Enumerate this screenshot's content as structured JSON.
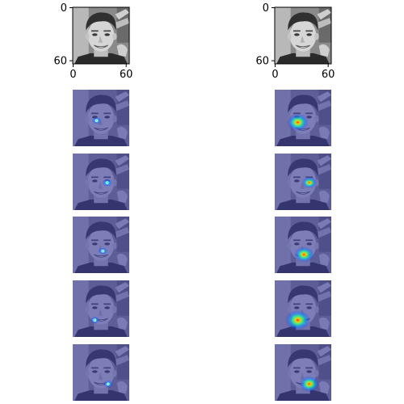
{
  "chart_data": [
    {
      "type": "image",
      "position": "row-1-left",
      "content": "grayscale face",
      "xlim": [
        0,
        64
      ],
      "ylim": [
        64,
        0
      ],
      "xticks": [
        "0",
        "60"
      ],
      "yticks": [
        "0",
        "60"
      ],
      "axes": "visible"
    },
    {
      "type": "image",
      "position": "row-1-right",
      "content": "grayscale face",
      "xlim": [
        0,
        64
      ],
      "ylim": [
        64,
        0
      ],
      "xticks": [
        "0",
        "60"
      ],
      "yticks": [
        "0",
        "60"
      ],
      "axes": "visible"
    },
    {
      "type": "heatmap",
      "position": "row-2-left",
      "colormap": "jet",
      "overlay": "face",
      "axes": "hidden",
      "hotspot": {
        "x": 27,
        "y": 35,
        "intensity": 0.35,
        "spread": 1.4
      }
    },
    {
      "type": "heatmap",
      "position": "row-2-right",
      "colormap": "jet",
      "overlay": "face",
      "axes": "hidden",
      "hotspot": {
        "x": 26,
        "y": 37,
        "intensity": 1.0,
        "spread": 5.0
      }
    },
    {
      "type": "heatmap",
      "position": "row-3-left",
      "colormap": "jet",
      "overlay": "face",
      "axes": "hidden",
      "hotspot": {
        "x": 39,
        "y": 33,
        "intensity": 0.55,
        "spread": 1.6
      }
    },
    {
      "type": "heatmap",
      "position": "row-3-right",
      "colormap": "jet",
      "overlay": "face",
      "axes": "hidden",
      "hotspot": {
        "x": 39,
        "y": 33,
        "intensity": 0.9,
        "spread": 3.0
      }
    },
    {
      "type": "heatmap",
      "position": "row-4-left",
      "colormap": "jet",
      "overlay": "face",
      "axes": "hidden",
      "hotspot": {
        "x": 34,
        "y": 39,
        "intensity": 0.4,
        "spread": 1.4
      }
    },
    {
      "type": "heatmap",
      "position": "row-4-right",
      "colormap": "jet",
      "overlay": "face",
      "axes": "hidden",
      "hotspot": {
        "x": 33,
        "y": 43,
        "intensity": 1.0,
        "spread": 4.5
      }
    },
    {
      "type": "heatmap",
      "position": "row-5-left",
      "colormap": "jet",
      "overlay": "face",
      "axes": "hidden",
      "hotspot": {
        "x": 25,
        "y": 45,
        "intensity": 0.35,
        "spread": 1.4
      }
    },
    {
      "type": "heatmap",
      "position": "row-5-right",
      "colormap": "jet",
      "overlay": "face",
      "axes": "hidden",
      "hotspot": {
        "x": 26,
        "y": 45,
        "intensity": 1.0,
        "spread": 6.0
      }
    },
    {
      "type": "heatmap",
      "position": "row-6-left",
      "colormap": "jet",
      "overlay": "face",
      "axes": "hidden",
      "hotspot": {
        "x": 40,
        "y": 45,
        "intensity": 0.4,
        "spread": 1.5
      }
    },
    {
      "type": "heatmap",
      "position": "row-6-right",
      "colormap": "jet",
      "overlay": "face",
      "axes": "hidden",
      "hotspot": {
        "x": 39,
        "y": 45,
        "intensity": 0.9,
        "spread": 4.5
      }
    }
  ],
  "colors": {
    "overlay_tint": "#3c3ca0",
    "background": "#ffffff"
  }
}
